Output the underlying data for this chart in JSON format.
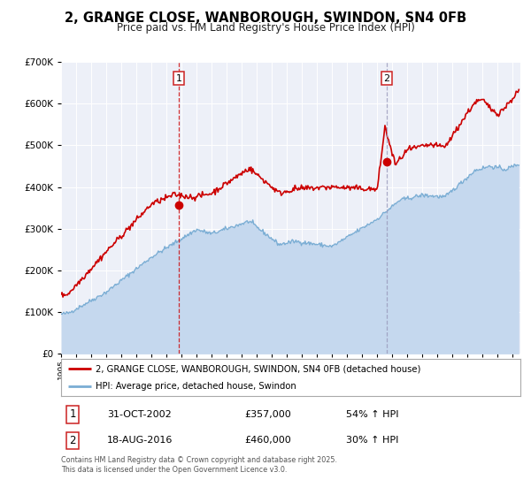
{
  "title": "2, GRANGE CLOSE, WANBOROUGH, SWINDON, SN4 0FB",
  "subtitle": "Price paid vs. HM Land Registry's House Price Index (HPI)",
  "red_label": "2, GRANGE CLOSE, WANBOROUGH, SWINDON, SN4 0FB (detached house)",
  "blue_label": "HPI: Average price, detached house, Swindon",
  "sale1_date": "31-OCT-2002",
  "sale1_price": "£357,000",
  "sale1_hpi": "54% ↑ HPI",
  "sale2_date": "18-AUG-2016",
  "sale2_price": "£460,000",
  "sale2_hpi": "30% ↑ HPI",
  "footnote": "Contains HM Land Registry data © Crown copyright and database right 2025.\nThis data is licensed under the Open Government Licence v3.0.",
  "sale1_x": 2002.83,
  "sale2_x": 2016.63,
  "sale1_y": 357000,
  "sale2_y": 460000,
  "vline1_x": 2002.83,
  "vline2_x": 2016.63,
  "bg_color": "#edf0f8",
  "red_color": "#cc0000",
  "blue_color": "#7aadd4",
  "blue_fill": "#c5d8ee",
  "ylim": [
    0,
    700000
  ],
  "xlim": [
    1995.0,
    2025.5
  ]
}
